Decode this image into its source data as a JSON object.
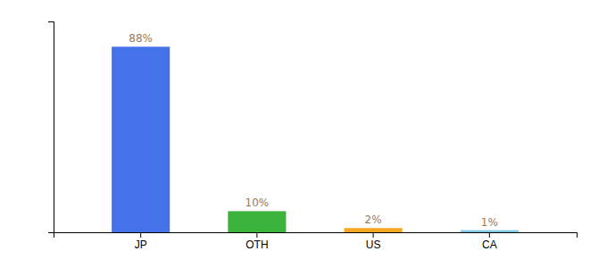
{
  "chart_data": {
    "type": "bar",
    "categories": [
      "JP",
      "OTH",
      "US",
      "CA"
    ],
    "values": [
      88,
      10,
      2,
      1
    ],
    "value_labels": [
      "88%",
      "10%",
      "2%",
      "1%"
    ],
    "colors": [
      "#4472e8",
      "#3cb33c",
      "#f5a623",
      "#7ec8e3"
    ],
    "ylim": [
      0,
      100
    ],
    "data_labels": true,
    "tick_labels": "x",
    "grid": false
  }
}
